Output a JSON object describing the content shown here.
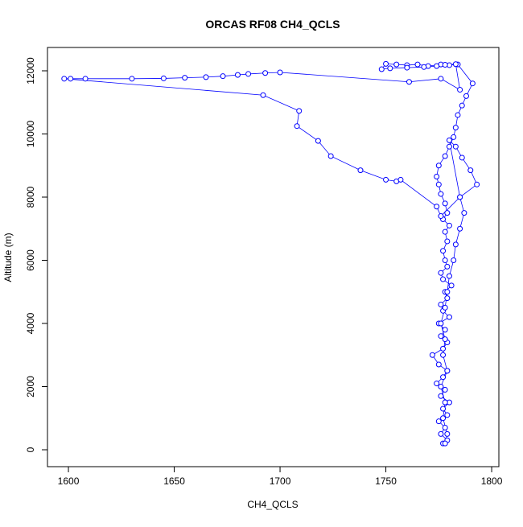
{
  "chart_data": {
    "type": "line",
    "title": "ORCAS RF08 CH4_QCLS",
    "x_label": "CH4_QCLS",
    "y_label": "Altitude (m)",
    "x": [
      1777,
      1779,
      1776,
      1778,
      1775,
      1779,
      1777,
      1780,
      1776,
      1778,
      1774,
      1777,
      1779,
      1775,
      1772,
      1777,
      1779,
      1776,
      1778,
      1775,
      1780,
      1777,
      1776,
      1779,
      1778,
      1781,
      1777,
      1776,
      1779,
      1778,
      1777,
      1779,
      1778,
      1780,
      1777,
      1779,
      1778,
      1776,
      1775,
      1774,
      1775,
      1778,
      1780,
      1782,
      1783,
      1784,
      1786,
      1788,
      1791,
      1784,
      1780,
      1776,
      1770,
      1765,
      1760,
      1755,
      1750,
      1748,
      1752,
      1760,
      1768,
      1774,
      1778,
      1783,
      1785,
      1776,
      1761,
      1700,
      1693,
      1685,
      1680,
      1673,
      1665,
      1655,
      1645,
      1630,
      1608,
      1601,
      1598,
      1692,
      1709,
      1708,
      1718,
      1724,
      1738,
      1750,
      1755,
      1757,
      1774,
      1776,
      1785,
      1793,
      1790,
      1786,
      1783,
      1780,
      1785,
      1787,
      1785,
      1783,
      1782,
      1780,
      1779,
      1778,
      1776,
      1778,
      1777,
      1779,
      1776,
      1778,
      1777,
      1779,
      1778
    ],
    "values": [
      200,
      300,
      500,
      700,
      900,
      1100,
      1300,
      1500,
      1700,
      1900,
      2100,
      2300,
      2500,
      2700,
      3000,
      3200,
      3400,
      3600,
      3800,
      4000,
      4200,
      4400,
      4600,
      4800,
      5000,
      5200,
      5400,
      5600,
      5800,
      6000,
      6300,
      6600,
      6900,
      7100,
      7300,
      7500,
      7800,
      8100,
      8400,
      8650,
      9000,
      9300,
      9600,
      9900,
      10200,
      10600,
      10900,
      11200,
      11600,
      12200,
      12180,
      12200,
      12150,
      12200,
      12180,
      12200,
      12220,
      12050,
      12080,
      12100,
      12120,
      12150,
      12190,
      12210,
      11400,
      11750,
      11650,
      11950,
      11930,
      11900,
      11870,
      11830,
      11800,
      11780,
      11760,
      11750,
      11750,
      11750,
      11750,
      11230,
      10730,
      10250,
      9780,
      9300,
      8850,
      8550,
      8500,
      8550,
      7700,
      7400,
      8000,
      8400,
      8850,
      9250,
      9600,
      9800,
      8000,
      7500,
      7000,
      6500,
      6000,
      5500,
      5000,
      4500,
      4000,
      3500,
      3000,
      2500,
      2000,
      1500,
      1000,
      500,
      200
    ],
    "color": "#0000ff",
    "markers": true,
    "xlim": [
      1590.1,
      1803.4
    ],
    "ylim": [
      -535,
      12739
    ],
    "xticks": [
      1600,
      1650,
      1700,
      1750,
      1800
    ],
    "yticks": [
      0,
      2000,
      4000,
      6000,
      8000,
      10000,
      12000
    ]
  }
}
